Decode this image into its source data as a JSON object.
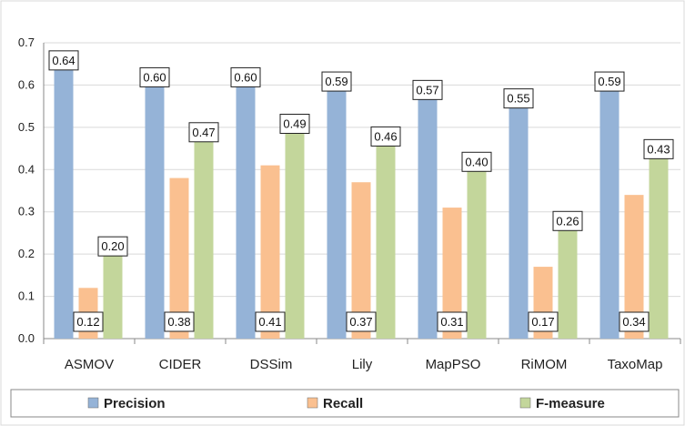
{
  "chart_data": {
    "type": "bar",
    "title": "",
    "xlabel": "",
    "ylabel": "",
    "ylim": [
      0,
      0.7
    ],
    "yticks": [
      "0.0",
      "0.1",
      "0.2",
      "0.3",
      "0.4",
      "0.5",
      "0.6",
      "0.7"
    ],
    "grid": true,
    "legend_position": "bottom",
    "categories": [
      "ASMOV",
      "CIDER",
      "DSSim",
      "Lily",
      "MapPSO",
      "RiMOM",
      "TaxoMap"
    ],
    "series": [
      {
        "name": "Precision",
        "color": "#95B3D7",
        "values": [
          0.64,
          0.6,
          0.6,
          0.59,
          0.57,
          0.55,
          0.59
        ],
        "labels": [
          "0.64",
          "0.60",
          "0.60",
          "0.59",
          "0.57",
          "0.55",
          "0.59"
        ]
      },
      {
        "name": "Recall",
        "color": "#FAC090",
        "values": [
          0.12,
          0.38,
          0.41,
          0.37,
          0.31,
          0.17,
          0.34
        ],
        "labels": [
          "0.12",
          "0.38",
          "0.41",
          "0.37",
          "0.31",
          "0.17",
          "0.34"
        ]
      },
      {
        "name": "F-measure",
        "color": "#C3D69B",
        "values": [
          0.2,
          0.47,
          0.49,
          0.46,
          0.4,
          0.26,
          0.43
        ],
        "labels": [
          "0.20",
          "0.47",
          "0.49",
          "0.46",
          "0.40",
          "0.26",
          "0.43"
        ]
      }
    ]
  }
}
